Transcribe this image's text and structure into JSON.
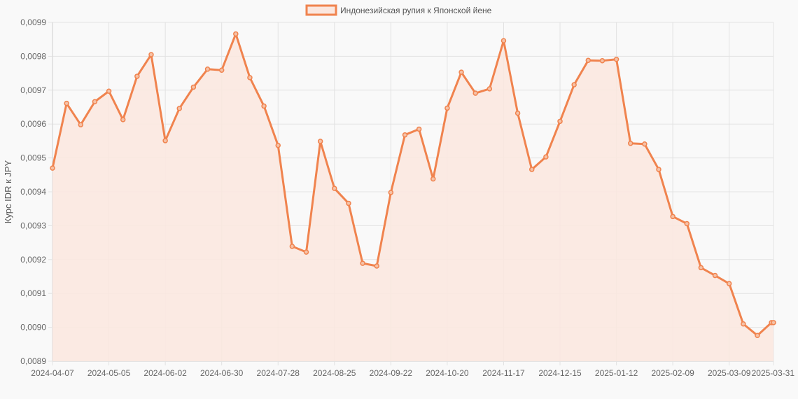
{
  "chart_data": {
    "type": "area",
    "ylabel": "Курс IDR к JPY",
    "ylim": [
      0.0089,
      0.0099
    ],
    "yticks": [
      "0,0089",
      "0,0090",
      "0,0091",
      "0,0092",
      "0,0093",
      "0,0094",
      "0,0095",
      "0,0096",
      "0,0097",
      "0,0098",
      "0,0099"
    ],
    "ytick_values": [
      0.0089,
      0.009,
      0.0091,
      0.0092,
      0.0093,
      0.0094,
      0.0095,
      0.0096,
      0.0097,
      0.0098,
      0.0099
    ],
    "xticks": [
      "2024-04-07",
      "2024-05-05",
      "2024-06-02",
      "2024-06-30",
      "2024-07-28",
      "2024-08-25",
      "2024-09-22",
      "2024-10-20",
      "2024-11-17",
      "2024-12-15",
      "2025-01-12",
      "2025-02-09",
      "2025-03-09",
      "2025-03-31"
    ],
    "grid": true,
    "legend_position": "top-center",
    "colors": {
      "line": "#f0834e",
      "fill": "#fbe7df",
      "grid": "#e2e2e2",
      "background": "#f9f9f9"
    },
    "series": [
      {
        "name": "Индонезийская рупия к Японской йене",
        "x": [
          "2024-04-07",
          "2024-04-14",
          "2024-04-21",
          "2024-04-28",
          "2024-05-05",
          "2024-05-12",
          "2024-05-19",
          "2024-05-26",
          "2024-06-02",
          "2024-06-09",
          "2024-06-16",
          "2024-06-23",
          "2024-06-30",
          "2024-07-07",
          "2024-07-14",
          "2024-07-21",
          "2024-07-28",
          "2024-08-04",
          "2024-08-11",
          "2024-08-18",
          "2024-08-25",
          "2024-09-01",
          "2024-09-08",
          "2024-09-15",
          "2024-09-22",
          "2024-09-29",
          "2024-10-06",
          "2024-10-13",
          "2024-10-20",
          "2024-10-27",
          "2024-11-03",
          "2024-11-10",
          "2024-11-17",
          "2024-11-24",
          "2024-12-01",
          "2024-12-08",
          "2024-12-15",
          "2024-12-22",
          "2024-12-29",
          "2025-01-05",
          "2025-01-12",
          "2025-01-19",
          "2025-01-26",
          "2025-02-02",
          "2025-02-09",
          "2025-02-16",
          "2025-02-23",
          "2025-03-02",
          "2025-03-09",
          "2025-03-16",
          "2025-03-23",
          "2025-03-30",
          "2025-03-31"
        ],
        "values": [
          0.00947,
          0.009661,
          0.009598,
          0.009666,
          0.009697,
          0.009613,
          0.009741,
          0.009805,
          0.009551,
          0.009646,
          0.009709,
          0.009762,
          0.009759,
          0.009866,
          0.009737,
          0.009653,
          0.009537,
          0.009239,
          0.009222,
          0.009549,
          0.00941,
          0.009366,
          0.009189,
          0.009181,
          0.009398,
          0.009568,
          0.009585,
          0.009438,
          0.009647,
          0.009753,
          0.009691,
          0.009704,
          0.009846,
          0.009632,
          0.009466,
          0.009503,
          0.009608,
          0.009716,
          0.009788,
          0.009787,
          0.009791,
          0.009543,
          0.009541,
          0.009466,
          0.009327,
          0.009306,
          0.009176,
          0.009153,
          0.009129,
          0.00901,
          0.008976,
          0.009014,
          0.009014
        ]
      }
    ]
  }
}
